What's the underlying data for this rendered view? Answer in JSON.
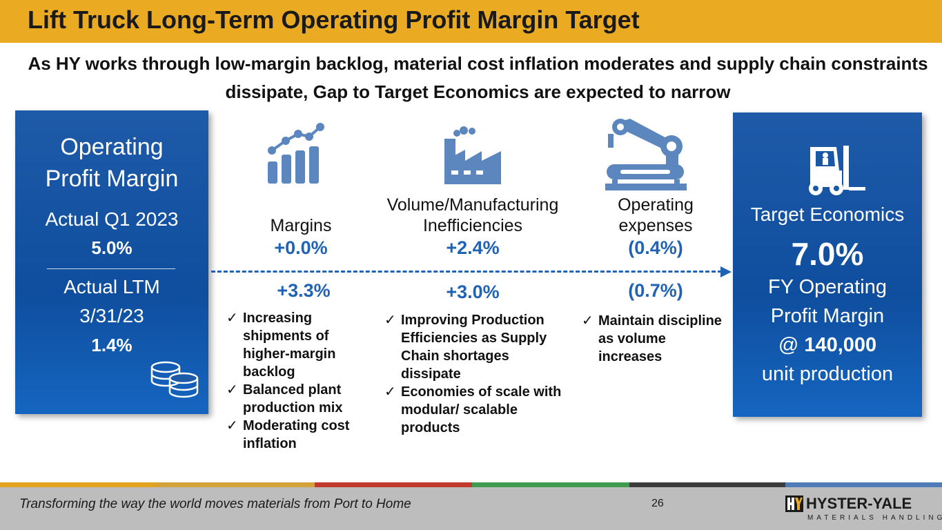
{
  "title": "Lift Truck Long-Term Operating Profit Margin Target",
  "subtitle": "As HY works through low-margin backlog, material cost inflation moderates and supply chain constraints dissipate, Gap to Target Economics are expected to narrow",
  "left_panel": {
    "heading_line1": "Operating",
    "heading_line2": "Profit Margin",
    "actual_q1_label": "Actual Q1 2023",
    "actual_q1_value": "5.0%",
    "actual_ltm_label_line1": "Actual LTM",
    "actual_ltm_label_line2": "3/31/23",
    "actual_ltm_value": "1.4%"
  },
  "columns": [
    {
      "label_line1": "Margins",
      "label_line2": "",
      "q1_delta": "+0.0%",
      "ltm_delta": "+3.3%",
      "checks": [
        "Increasing shipments of higher-margin backlog",
        "Balanced plant production mix",
        "Moderating cost inflation"
      ]
    },
    {
      "label_line1": "Volume/Manufacturing",
      "label_line2": "Inefficiencies",
      "q1_delta": "+2.4%",
      "ltm_delta": "+3.0%",
      "checks": [
        "Improving Production Efficiencies as Supply Chain shortages dissipate",
        "Economies of scale with modular/ scalable products"
      ]
    },
    {
      "label_line1": "Operating",
      "label_line2": "expenses",
      "q1_delta": "(0.4%)",
      "ltm_delta": "(0.7%)",
      "checks": [
        "Maintain discipline as volume increases"
      ]
    }
  ],
  "right_panel": {
    "label": "Target Economics",
    "value": "7.0%",
    "line1": "FY Operating",
    "line2": "Profit Margin",
    "at_prefix": "@ ",
    "units": "140,000",
    "line4": "unit production"
  },
  "icons": [
    "coins-icon",
    "growth-chart-icon",
    "factory-icon",
    "robot-arm-icon",
    "forklift-icon"
  ],
  "footer": {
    "tagline": "Transforming the way the world moves materials from Port to Home",
    "page_number": "26",
    "brand": "HYSTER-YALE",
    "brand_sub": "MATERIALS HANDLING"
  },
  "colors": {
    "title_bar": "#EAAA22",
    "accent_blue": "#1F63B6",
    "panel_blue": "#0F4E9E",
    "icon_blue": "#5B86BE",
    "footer_gray": "#BDBDBD"
  }
}
